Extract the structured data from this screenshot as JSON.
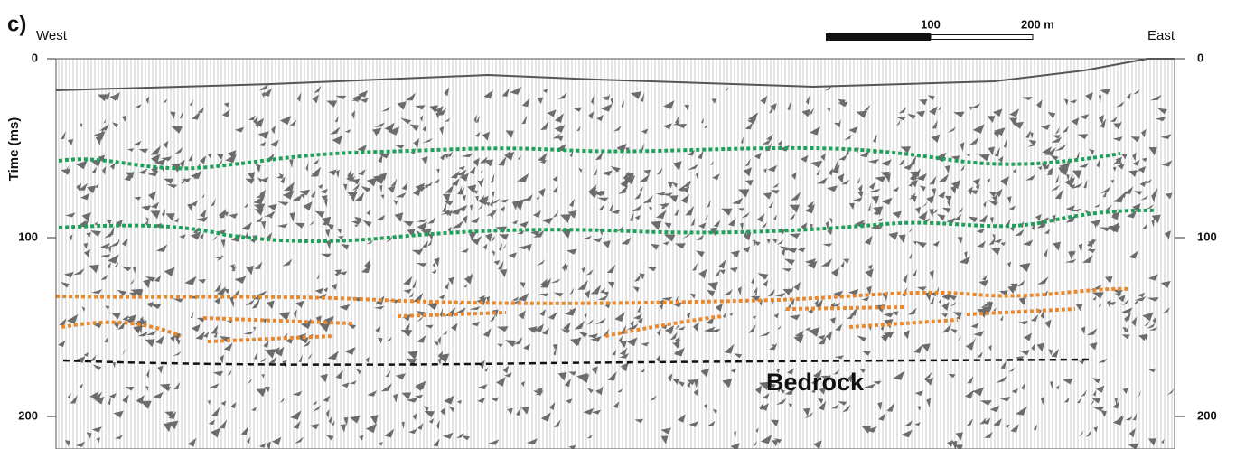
{
  "panel_label": "c)",
  "west_label": "West",
  "east_label": "East",
  "scale_bar": {
    "labels": [
      "100",
      "200 m"
    ]
  },
  "time_axis": {
    "label": "Time (ms)",
    "ticks": [
      "0",
      "100",
      "200"
    ]
  },
  "annotation": "Bedrock"
}
